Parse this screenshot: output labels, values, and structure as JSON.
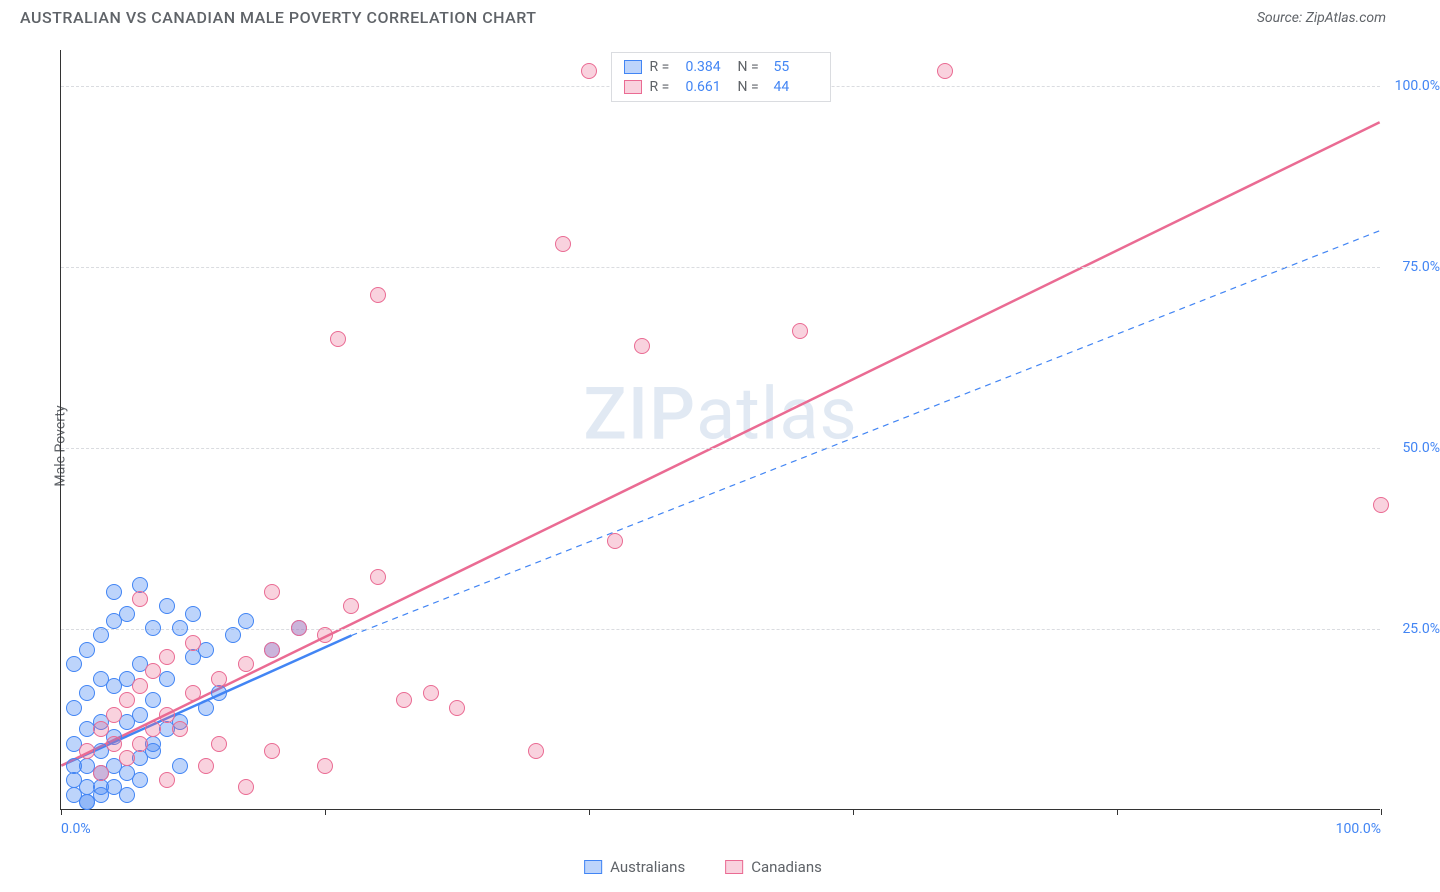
{
  "title": "AUSTRALIAN VS CANADIAN MALE POVERTY CORRELATION CHART",
  "source_label": "Source: ZipAtlas.com",
  "y_axis_label": "Male Poverty",
  "watermark": {
    "zip": "ZIP",
    "atlas": "atlas"
  },
  "chart": {
    "type": "scatter",
    "background_color": "#ffffff",
    "grid_color": "#dadce0",
    "axis_color": "#333333",
    "xlim": [
      0,
      100
    ],
    "ylim": [
      0,
      105
    ],
    "x_ticks": [
      0,
      20,
      40,
      60,
      80,
      100
    ],
    "x_tick_labels": {
      "0": "0.0%",
      "100": "100.0%"
    },
    "y_gridlines": [
      25,
      50,
      75,
      100
    ],
    "y_tick_labels": {
      "25": "25.0%",
      "50": "50.0%",
      "75": "75.0%",
      "100": "100.0%"
    },
    "tick_label_color": "#4285f4",
    "marker_radius": 8,
    "marker_stroke_width": 1.5,
    "series": [
      {
        "name": "Australians",
        "fill": "rgba(66,133,244,0.35)",
        "stroke": "#4285f4",
        "r_value": "0.384",
        "n_value": "55",
        "trend": {
          "style": "solid",
          "width": 2.5,
          "color": "#4285f4",
          "x1": 0,
          "y1": 6,
          "x2": 22,
          "y2": 24,
          "dash": {
            "color": "#4285f4",
            "width": 1.2,
            "pattern": "6,5",
            "x1": 22,
            "y1": 24,
            "x2": 100,
            "y2": 80
          }
        },
        "points": [
          [
            1,
            2
          ],
          [
            2,
            1
          ],
          [
            1,
            4
          ],
          [
            2,
            3
          ],
          [
            1,
            6
          ],
          [
            3,
            2
          ],
          [
            2,
            6
          ],
          [
            3,
            5
          ],
          [
            1,
            9
          ],
          [
            3,
            8
          ],
          [
            4,
            3
          ],
          [
            4,
            6
          ],
          [
            2,
            11
          ],
          [
            5,
            5
          ],
          [
            3,
            12
          ],
          [
            1,
            14
          ],
          [
            4,
            10
          ],
          [
            6,
            7
          ],
          [
            2,
            16
          ],
          [
            5,
            12
          ],
          [
            3,
            18
          ],
          [
            7,
            9
          ],
          [
            1,
            20
          ],
          [
            6,
            13
          ],
          [
            4,
            17
          ],
          [
            2,
            22
          ],
          [
            8,
            11
          ],
          [
            5,
            18
          ],
          [
            3,
            24
          ],
          [
            7,
            15
          ],
          [
            9,
            12
          ],
          [
            4,
            26
          ],
          [
            6,
            20
          ],
          [
            2,
            1
          ],
          [
            11,
            14
          ],
          [
            8,
            18
          ],
          [
            5,
            27
          ],
          [
            10,
            21
          ],
          [
            3,
            3
          ],
          [
            12,
            16
          ],
          [
            7,
            25
          ],
          [
            4,
            30
          ],
          [
            9,
            25
          ],
          [
            6,
            4
          ],
          [
            14,
            26
          ],
          [
            8,
            28
          ],
          [
            5,
            2
          ],
          [
            11,
            22
          ],
          [
            18,
            25
          ],
          [
            7,
            8
          ],
          [
            10,
            27
          ],
          [
            6,
            31
          ],
          [
            13,
            24
          ],
          [
            9,
            6
          ],
          [
            16,
            22
          ]
        ]
      },
      {
        "name": "Canadians",
        "fill": "rgba(234,107,147,0.30)",
        "stroke": "#ea6b93",
        "r_value": "0.661",
        "n_value": "44",
        "trend": {
          "style": "solid",
          "width": 2.5,
          "color": "#ea6b93",
          "x1": 0,
          "y1": 6,
          "x2": 100,
          "y2": 95
        },
        "points": [
          [
            2,
            8
          ],
          [
            3,
            5
          ],
          [
            4,
            9
          ],
          [
            5,
            7
          ],
          [
            3,
            11
          ],
          [
            6,
            9
          ],
          [
            4,
            13
          ],
          [
            7,
            11
          ],
          [
            5,
            15
          ],
          [
            8,
            13
          ],
          [
            6,
            17
          ],
          [
            9,
            11
          ],
          [
            7,
            19
          ],
          [
            10,
            16
          ],
          [
            8,
            21
          ],
          [
            12,
            18
          ],
          [
            10,
            23
          ],
          [
            14,
            20
          ],
          [
            12,
            9
          ],
          [
            16,
            22
          ],
          [
            11,
            6
          ],
          [
            18,
            25
          ],
          [
            14,
            3
          ],
          [
            20,
            24
          ],
          [
            16,
            30
          ],
          [
            22,
            28
          ],
          [
            24,
            32
          ],
          [
            26,
            15
          ],
          [
            28,
            16
          ],
          [
            30,
            14
          ],
          [
            21,
            65
          ],
          [
            24,
            71
          ],
          [
            38,
            78
          ],
          [
            40,
            102
          ],
          [
            42,
            37
          ],
          [
            44,
            64
          ],
          [
            56,
            66
          ],
          [
            36,
            8
          ],
          [
            20,
            6
          ],
          [
            67,
            102
          ],
          [
            100,
            42
          ],
          [
            16,
            8
          ],
          [
            6,
            29
          ],
          [
            8,
            4
          ]
        ]
      }
    ]
  },
  "legend_top": {
    "r_label": "R =",
    "n_label": "N ="
  },
  "legend_bottom": [
    {
      "label": "Australians",
      "fill": "rgba(66,133,244,0.35)",
      "stroke": "#4285f4"
    },
    {
      "label": "Canadians",
      "fill": "rgba(234,107,147,0.30)",
      "stroke": "#ea6b93"
    }
  ]
}
